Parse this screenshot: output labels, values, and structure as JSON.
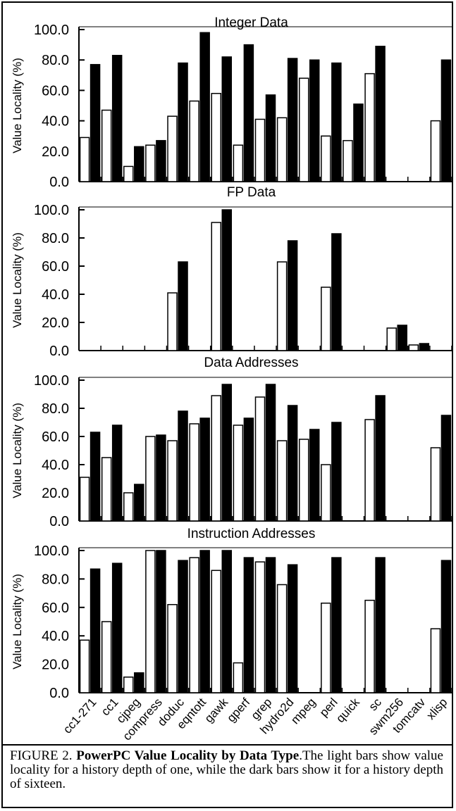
{
  "figure": {
    "caption_label": "FIGURE 2.",
    "caption_title": "PowerPC Value Locality by Data Type",
    "caption_text": "The light bars show value locality for a history depth of one, while the dark bars show it for a history depth of sixteen."
  },
  "chart_data": {
    "type": "bar",
    "categories": [
      "cc1-271",
      "cc1",
      "cjpeg",
      "compress",
      "doduc",
      "eqntott",
      "gawk",
      "gperf",
      "grep",
      "hydro2d",
      "mpeg",
      "perl",
      "quick",
      "sc",
      "swm256",
      "tomcatv",
      "xlisp"
    ],
    "ylabel": "Value Locality (%)",
    "ylim": [
      0,
      100
    ],
    "yticks": [
      "0.0",
      "20.0",
      "40.0",
      "60.0",
      "80.0",
      "100.0"
    ],
    "colors": {
      "light": "#ffffff",
      "dark": "#000000"
    },
    "panels": [
      {
        "title": "Integer Data",
        "series": [
          {
            "values": [
              29,
              47,
              10,
              24,
              43,
              53,
              58,
              24,
              41,
              42,
              68,
              30,
              27,
              71,
              null,
              null,
              40
            ]
          },
          {
            "values": [
              77,
              83,
              23,
              27,
              78,
              98,
              82,
              90,
              57,
              81,
              80,
              78,
              51,
              89,
              null,
              null,
              80
            ]
          }
        ]
      },
      {
        "title": "FP Data",
        "series": [
          {
            "values": [
              null,
              null,
              null,
              null,
              41,
              null,
              91,
              null,
              null,
              63,
              null,
              45,
              null,
              null,
              16,
              4,
              null
            ]
          },
          {
            "values": [
              null,
              null,
              null,
              null,
              63,
              null,
              100,
              null,
              null,
              78,
              null,
              83,
              null,
              null,
              18,
              5,
              null
            ]
          }
        ]
      },
      {
        "title": "Data Addresses",
        "series": [
          {
            "values": [
              31,
              45,
              20,
              60,
              57,
              69,
              89,
              68,
              88,
              57,
              58,
              40,
              null,
              72,
              null,
              null,
              52
            ]
          },
          {
            "values": [
              63,
              68,
              26,
              61,
              78,
              73,
              97,
              73,
              97,
              82,
              65,
              70,
              null,
              89,
              null,
              null,
              75
            ]
          }
        ]
      },
      {
        "title": "Instruction Addresses",
        "series": [
          {
            "values": [
              37,
              50,
              11,
              100,
              62,
              95,
              86,
              21,
              92,
              76,
              null,
              63,
              null,
              65,
              null,
              null,
              45
            ]
          },
          {
            "values": [
              87,
              91,
              14,
              100,
              93,
              100,
              100,
              95,
              95,
              90,
              null,
              95,
              null,
              95,
              null,
              null,
              93
            ]
          }
        ]
      }
    ]
  }
}
